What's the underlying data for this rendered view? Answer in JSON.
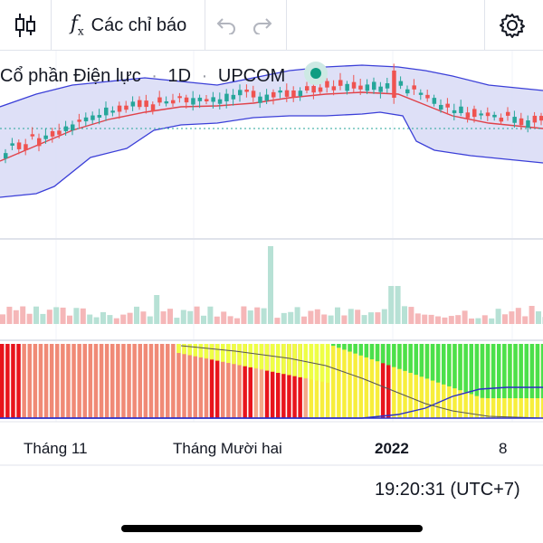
{
  "toolbar": {
    "chart_type_icon": "candlestick-icon",
    "indicator_icon": "function-icon",
    "indicators_label": "Các chỉ báo",
    "undo_icon": "undo-icon",
    "redo_icon": "redo-icon",
    "settings_icon": "gear-icon"
  },
  "legend": {
    "symbol_name": "Cổ phần Điện lực",
    "interval": "1D",
    "exchange": "UPCOM",
    "separator": "·"
  },
  "time_axis": {
    "labels": [
      "Tháng 11",
      "Tháng Mười hai",
      "2022",
      "8"
    ]
  },
  "footer": {
    "clock": "19:20:31 (UTC+7)"
  },
  "colors": {
    "up": "#26a69a",
    "down": "#ef5350",
    "band_fill": "#d1d4f5",
    "band_line": "#3b3fd8",
    "ma_line": "#e0424a",
    "volume_up": "#b7e1d5",
    "volume_down": "#f5b7b8"
  },
  "chart_data": {
    "type": "candlestick",
    "x": [
      "Tháng 11",
      "Tháng Mười hai",
      "2022",
      "8"
    ],
    "overlays": [
      "bollinger-bands",
      "moving-average"
    ],
    "panes": [
      "price",
      "volume",
      "indicator"
    ]
  }
}
